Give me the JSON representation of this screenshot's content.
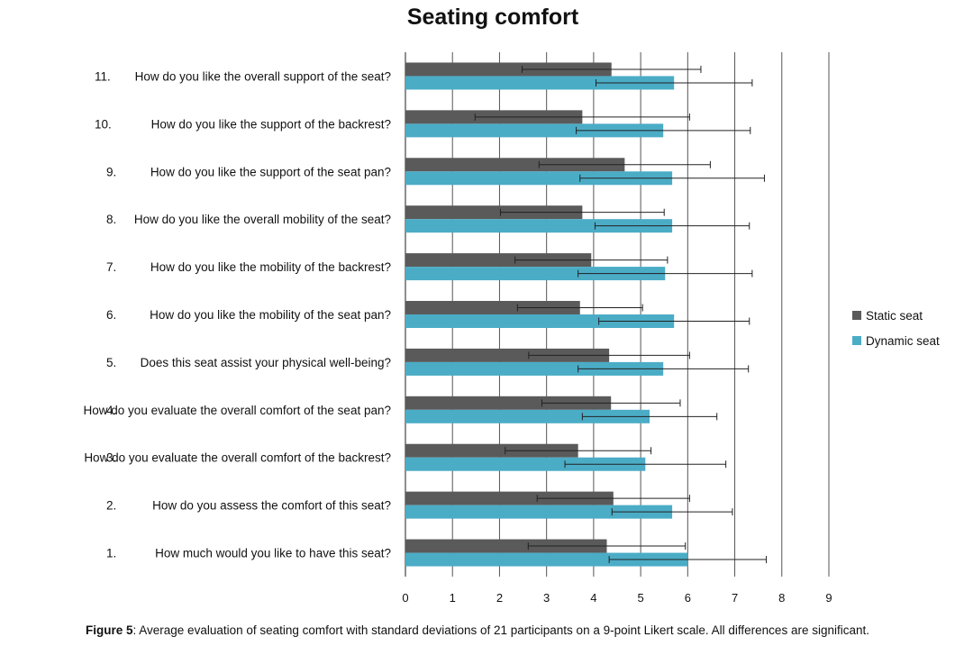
{
  "chart_data": {
    "type": "bar",
    "orientation": "horizontal",
    "title": "Seating comfort",
    "categories": [
      {
        "num": "1.",
        "text": "How much would you like to have this seat?"
      },
      {
        "num": "2.",
        "text": "How do you assess the comfort of this seat?"
      },
      {
        "num": "3.",
        "text": "How do you evaluate the overall comfort of the backrest?"
      },
      {
        "num": "4.",
        "text": "How do you evaluate the overall comfort of the seat pan?"
      },
      {
        "num": "5.",
        "text": "Does this seat assist your physical well-being?"
      },
      {
        "num": "6.",
        "text": "How do you like the mobility of the seat pan?"
      },
      {
        "num": "7.",
        "text": "How do you like the mobility of the backrest?"
      },
      {
        "num": "8.",
        "text": "How do you like the overall mobility of the seat?"
      },
      {
        "num": "9.",
        "text": "How do you like the support of the seat pan?"
      },
      {
        "num": "10.",
        "text": "How do you like the support of the backrest?"
      },
      {
        "num": "11.",
        "text": "How do you like the overall support of the seat?"
      }
    ],
    "series": [
      {
        "name": "Static seat",
        "color": "#5a5a5a",
        "values": [
          4.28,
          4.42,
          3.67,
          4.37,
          4.33,
          3.71,
          3.95,
          3.76,
          4.66,
          3.76,
          4.38
        ],
        "error": [
          1.67,
          1.62,
          1.55,
          1.47,
          1.71,
          1.33,
          1.62,
          1.74,
          1.82,
          2.28,
          1.9
        ]
      },
      {
        "name": "Dynamic seat",
        "color": "#4bacc6",
        "values": [
          6.0,
          5.67,
          5.1,
          5.19,
          5.48,
          5.71,
          5.52,
          5.67,
          5.67,
          5.48,
          5.71
        ],
        "error": [
          1.67,
          1.28,
          1.71,
          1.43,
          1.81,
          1.6,
          1.85,
          1.64,
          1.96,
          1.85,
          1.66
        ]
      }
    ],
    "xlim": [
      0,
      9
    ],
    "xticks": [
      "0",
      "1",
      "2",
      "3",
      "4",
      "5",
      "6",
      "7",
      "8",
      "9"
    ],
    "grid": "vertical",
    "legend": "right"
  },
  "caption": {
    "label": "Figure 5",
    "text": ": Average evaluation of seating comfort with standard deviations of 21 participants on a 9-point Likert scale. All differences are significant."
  }
}
